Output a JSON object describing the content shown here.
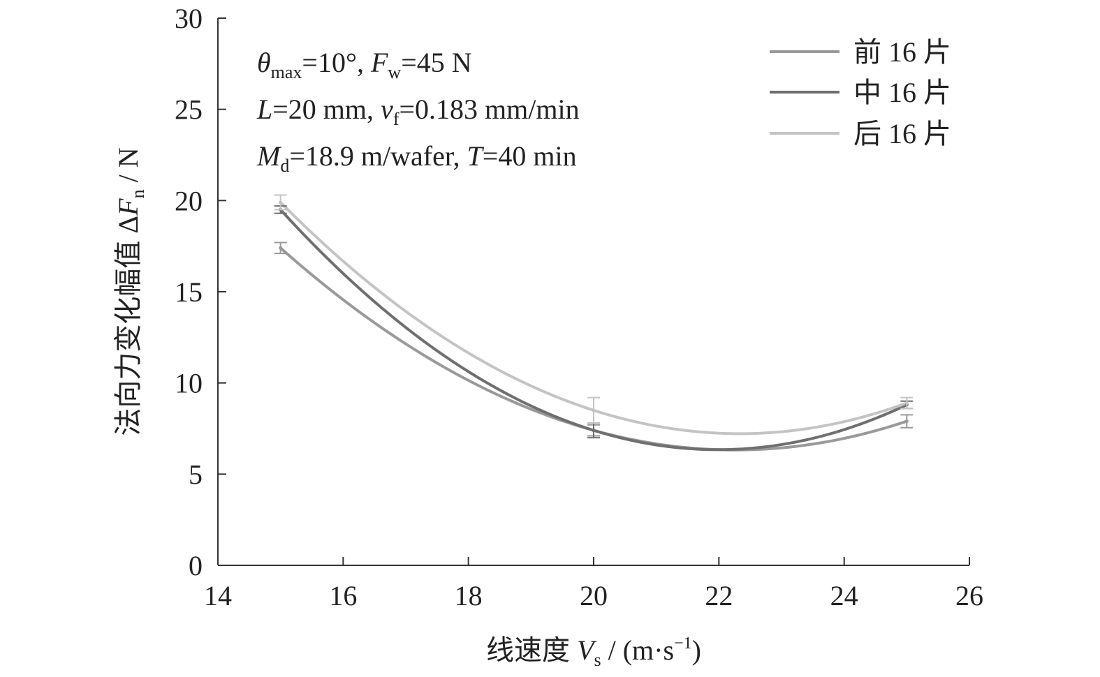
{
  "chart_data": {
    "type": "line",
    "xlabel": "线速度 V_s / (m·s⁻¹)",
    "ylabel": "法向力变化幅值 ΔF_n / N",
    "xlim": [
      14,
      26
    ],
    "ylim": [
      0,
      30
    ],
    "xticks": [
      14,
      16,
      18,
      20,
      22,
      24,
      26
    ],
    "yticks": [
      0,
      5,
      10,
      15,
      20,
      25,
      30
    ],
    "grid": false,
    "legend_position": "top-right",
    "x": [
      15,
      20,
      25
    ],
    "series": [
      {
        "name": "前 16 片",
        "values": [
          17.4,
          7.4,
          7.9
        ],
        "errors": [
          0.3,
          0.3,
          0.35
        ],
        "color": "#9a9a9a"
      },
      {
        "name": "中 16 片",
        "values": [
          19.5,
          7.4,
          8.8
        ],
        "errors": [
          0.2,
          0.4,
          0.2
        ],
        "color": "#6f6f6f"
      },
      {
        "name": "后 16 片",
        "values": [
          19.9,
          8.5,
          8.9
        ],
        "errors": [
          0.4,
          0.7,
          0.3
        ],
        "color": "#c4c4c4"
      }
    ],
    "annotations": [
      {
        "main1": "θ",
        "sub1": "max",
        "rest1": "=10°, ",
        "main2": "F",
        "sub2": "w",
        "rest2": "=45 N"
      },
      {
        "main1": "L",
        "sub1": "",
        "rest1": "=20 mm, ",
        "main2": "v",
        "sub2": "f",
        "rest2": "=0.183 mm/min"
      },
      {
        "main1": "M",
        "sub1": "d",
        "rest1": "=18.9 m/wafer, ",
        "main2": "T",
        "sub2": "",
        "rest2": "=40 min"
      }
    ]
  },
  "labels": {
    "xlabel_cn": "线速度",
    "xlabel_var": "V",
    "xlabel_sub": "s",
    "xlabel_unit_pre": " / (m·s",
    "xlabel_unit_sup": "−1",
    "xlabel_unit_post": ")",
    "ylabel_cn": "法向力变化幅值",
    "ylabel_delta": " Δ",
    "ylabel_var": "F",
    "ylabel_sub": "n",
    "ylabel_unit": " / N"
  }
}
